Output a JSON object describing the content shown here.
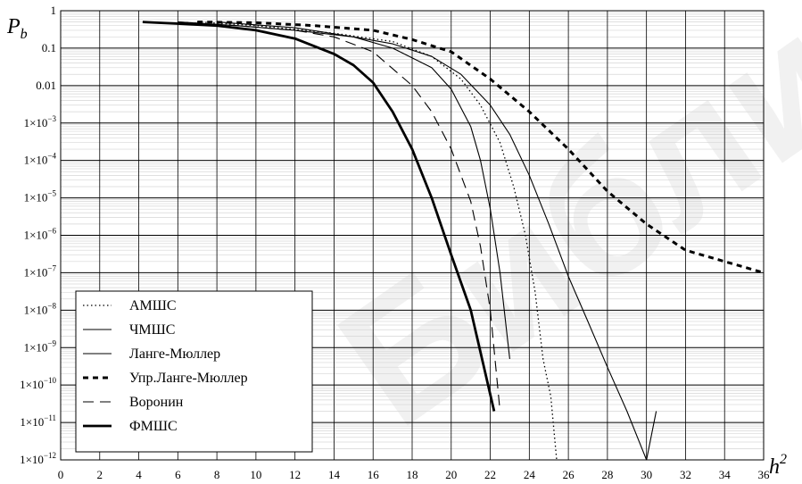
{
  "watermark": "Библиотека БГУИР",
  "chart_data": {
    "type": "line",
    "y_scale": "log",
    "ylim": [
      1e-12,
      1
    ],
    "xlim": [
      0,
      36
    ],
    "ylabel": "P",
    "ylabel_sub": "b",
    "xlabel": "h",
    "xlabel_sup": "2",
    "grid": true,
    "legend_position": "bottom-left",
    "x_ticks": [
      "0",
      "2",
      "4",
      "6",
      "8",
      "10",
      "12",
      "14",
      "16",
      "18",
      "20",
      "22",
      "24",
      "26",
      "28",
      "30",
      "32",
      "34",
      "36"
    ],
    "y_ticks": [
      {
        "value": 1,
        "mant": "1",
        "exp": ""
      },
      {
        "value": 0.1,
        "mant": "0.1",
        "exp": ""
      },
      {
        "value": 0.01,
        "mant": "0.01",
        "exp": ""
      },
      {
        "value": 0.001,
        "mant": "1×10",
        "exp": "−3"
      },
      {
        "value": 0.0001,
        "mant": "1×10",
        "exp": "−4"
      },
      {
        "value": 1e-05,
        "mant": "1×10",
        "exp": "−5"
      },
      {
        "value": 1e-06,
        "mant": "1×10",
        "exp": "−6"
      },
      {
        "value": 1e-07,
        "mant": "1×10",
        "exp": "−7"
      },
      {
        "value": 1e-08,
        "mant": "1×10",
        "exp": "−8"
      },
      {
        "value": 1e-09,
        "mant": "1×10",
        "exp": "−9"
      },
      {
        "value": 1e-10,
        "mant": "1×10",
        "exp": "−10"
      },
      {
        "value": 1e-11,
        "mant": "1×10",
        "exp": "−11"
      },
      {
        "value": 1e-12,
        "mant": "1×10",
        "exp": "−12"
      }
    ],
    "series": [
      {
        "name": "АМШС",
        "style": "dotted",
        "color": "#000000",
        "x": [
          7,
          10,
          14,
          17,
          19,
          20.5,
          21.5,
          22.5,
          23.2,
          23.8,
          24.3,
          24.7,
          25.1,
          25.4
        ],
        "y": [
          0.5,
          0.4,
          0.25,
          0.15,
          0.06,
          0.015,
          0.003,
          0.0003,
          2e-05,
          1e-06,
          3e-08,
          5e-10,
          5e-11,
          1e-12
        ]
      },
      {
        "name": "ЧМШС",
        "style": "solid-thin",
        "color": "#000000",
        "x": [
          6,
          9,
          12,
          15,
          17,
          19,
          20.5,
          22,
          23,
          24,
          25,
          26,
          27,
          28,
          29,
          30,
          30.5
        ],
        "y": [
          0.5,
          0.4,
          0.3,
          0.2,
          0.13,
          0.06,
          0.02,
          0.003,
          0.0005,
          4e-05,
          2e-06,
          8e-08,
          5e-09,
          3e-10,
          2e-11,
          1e-12,
          2e-11
        ]
      },
      {
        "name": "Ланге-Мюллер",
        "style": "solid-thin",
        "color": "#000000",
        "x": [
          8,
          12,
          15,
          17,
          19,
          20,
          21,
          21.5,
          22,
          22.5,
          23
        ],
        "y": [
          0.5,
          0.35,
          0.2,
          0.1,
          0.03,
          0.008,
          0.0008,
          0.0001,
          5e-06,
          1e-07,
          5e-10
        ]
      },
      {
        "name": "Упр.Ланге-Мюллер",
        "style": "dashed-bold",
        "color": "#000000",
        "x": [
          7,
          10,
          13,
          16,
          18,
          20,
          22,
          24,
          26,
          28,
          30,
          32,
          34,
          36
        ],
        "y": [
          0.5,
          0.48,
          0.4,
          0.3,
          0.17,
          0.08,
          0.015,
          0.002,
          0.0002,
          1.5e-05,
          2e-06,
          4e-07,
          2e-07,
          1e-07
        ]
      },
      {
        "name": "Воронин",
        "style": "dashed",
        "color": "#000000",
        "x": [
          6,
          9,
          12,
          14,
          16,
          18,
          19,
          20,
          21,
          21.5,
          22,
          22.5
        ],
        "y": [
          0.5,
          0.4,
          0.3,
          0.2,
          0.08,
          0.01,
          0.002,
          0.0002,
          8e-06,
          5e-07,
          1e-08,
          2e-11
        ]
      },
      {
        "name": "ФМШС",
        "style": "solid-bold",
        "color": "#000000",
        "x": [
          4.2,
          6,
          8,
          10,
          12,
          14,
          15,
          16,
          17,
          18,
          19,
          20,
          21,
          22.2
        ],
        "y": [
          0.5,
          0.45,
          0.4,
          0.3,
          0.18,
          0.07,
          0.035,
          0.012,
          0.002,
          0.0002,
          1e-05,
          3e-07,
          1e-08,
          2e-11
        ]
      }
    ]
  }
}
